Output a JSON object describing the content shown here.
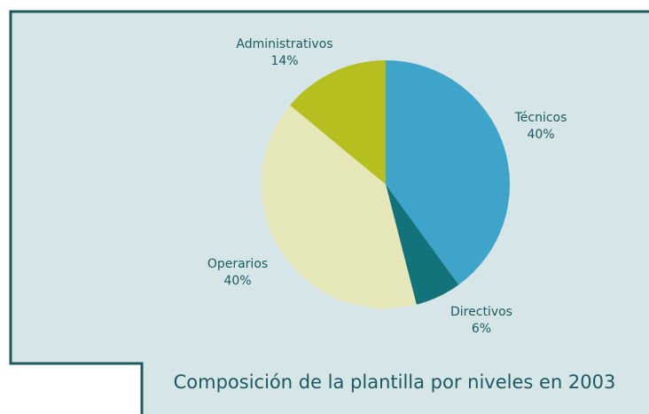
{
  "chart_data": {
    "type": "pie",
    "title": "Composición de la plantilla por niveles en 2003",
    "categories": [
      "Técnicos",
      "Directivos",
      "Operarios",
      "Administrativos"
    ],
    "values": [
      40,
      6,
      40,
      14
    ],
    "value_labels": [
      "40%",
      "6%",
      "40%",
      "14%"
    ],
    "colors": [
      "#3ea4c9",
      "#13737a",
      "#e6e7b8",
      "#b5bf1f"
    ]
  }
}
